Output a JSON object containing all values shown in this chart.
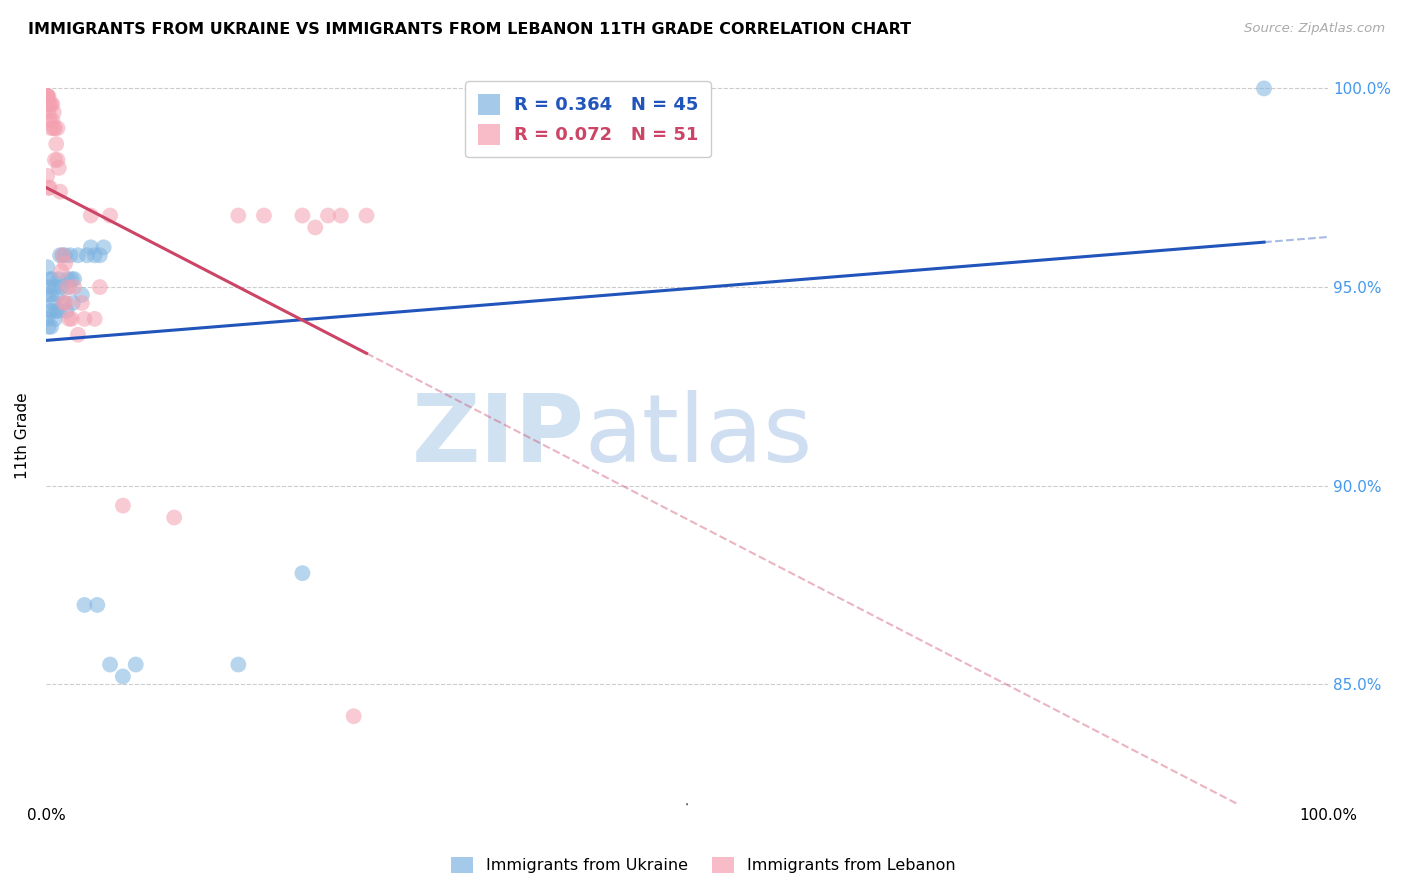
{
  "title": "IMMIGRANTS FROM UKRAINE VS IMMIGRANTS FROM LEBANON 11TH GRADE CORRELATION CHART",
  "source": "Source: ZipAtlas.com",
  "ylabel": "11th Grade",
  "ukraine_color": "#7EB3E0",
  "lebanon_color": "#F4A0B0",
  "ukraine_R": 0.364,
  "ukraine_N": 45,
  "lebanon_R": 0.072,
  "lebanon_N": 51,
  "ukraine_line_color": "#2255BB",
  "lebanon_line_color": "#CC4466",
  "ukraine_x": [
    0.001,
    0.001,
    0.001,
    0.002,
    0.002,
    0.003,
    0.003,
    0.004,
    0.004,
    0.005,
    0.005,
    0.006,
    0.007,
    0.007,
    0.008,
    0.009,
    0.01,
    0.01,
    0.011,
    0.012,
    0.013,
    0.014,
    0.015,
    0.016,
    0.017,
    0.018,
    0.019,
    0.02,
    0.021,
    0.022,
    0.025,
    0.028,
    0.03,
    0.032,
    0.035,
    0.038,
    0.04,
    0.042,
    0.045,
    0.05,
    0.06,
    0.07,
    0.15,
    0.2,
    0.95
  ],
  "ukraine_y": [
    0.942,
    0.948,
    0.955,
    0.94,
    0.95,
    0.944,
    0.952,
    0.94,
    0.948,
    0.944,
    0.952,
    0.946,
    0.942,
    0.95,
    0.944,
    0.948,
    0.944,
    0.952,
    0.958,
    0.95,
    0.958,
    0.946,
    0.958,
    0.944,
    0.952,
    0.95,
    0.958,
    0.952,
    0.946,
    0.952,
    0.958,
    0.948,
    0.87,
    0.958,
    0.96,
    0.958,
    0.87,
    0.958,
    0.96,
    0.855,
    0.852,
    0.855,
    0.855,
    0.878,
    1.0
  ],
  "lebanon_x": [
    0.001,
    0.001,
    0.001,
    0.001,
    0.001,
    0.002,
    0.002,
    0.002,
    0.002,
    0.003,
    0.003,
    0.003,
    0.004,
    0.004,
    0.005,
    0.005,
    0.006,
    0.006,
    0.007,
    0.007,
    0.008,
    0.009,
    0.009,
    0.01,
    0.011,
    0.012,
    0.013,
    0.014,
    0.015,
    0.016,
    0.017,
    0.018,
    0.02,
    0.022,
    0.025,
    0.028,
    0.03,
    0.035,
    0.038,
    0.042,
    0.05,
    0.06,
    0.1,
    0.15,
    0.17,
    0.2,
    0.21,
    0.22,
    0.23,
    0.24,
    0.25
  ],
  "lebanon_y": [
    0.998,
    0.998,
    0.998,
    0.998,
    0.978,
    0.998,
    0.996,
    0.994,
    0.975,
    0.996,
    0.992,
    0.975,
    0.99,
    0.996,
    0.992,
    0.996,
    0.99,
    0.994,
    0.99,
    0.982,
    0.986,
    0.982,
    0.99,
    0.98,
    0.974,
    0.954,
    0.958,
    0.946,
    0.956,
    0.946,
    0.95,
    0.942,
    0.942,
    0.95,
    0.938,
    0.946,
    0.942,
    0.968,
    0.942,
    0.95,
    0.968,
    0.895,
    0.892,
    0.968,
    0.968,
    0.968,
    0.965,
    0.968,
    0.968,
    0.842,
    0.968
  ],
  "ylim": [
    0.82,
    1.005
  ],
  "xlim": [
    0.0,
    1.0
  ],
  "yticks": [
    0.85,
    0.9,
    0.95,
    1.0
  ],
  "ytick_labels": [
    "85.0%",
    "90.0%",
    "95.0%",
    "100.0%"
  ],
  "xtick_labels_show": [
    "0.0%",
    "100.0%"
  ]
}
